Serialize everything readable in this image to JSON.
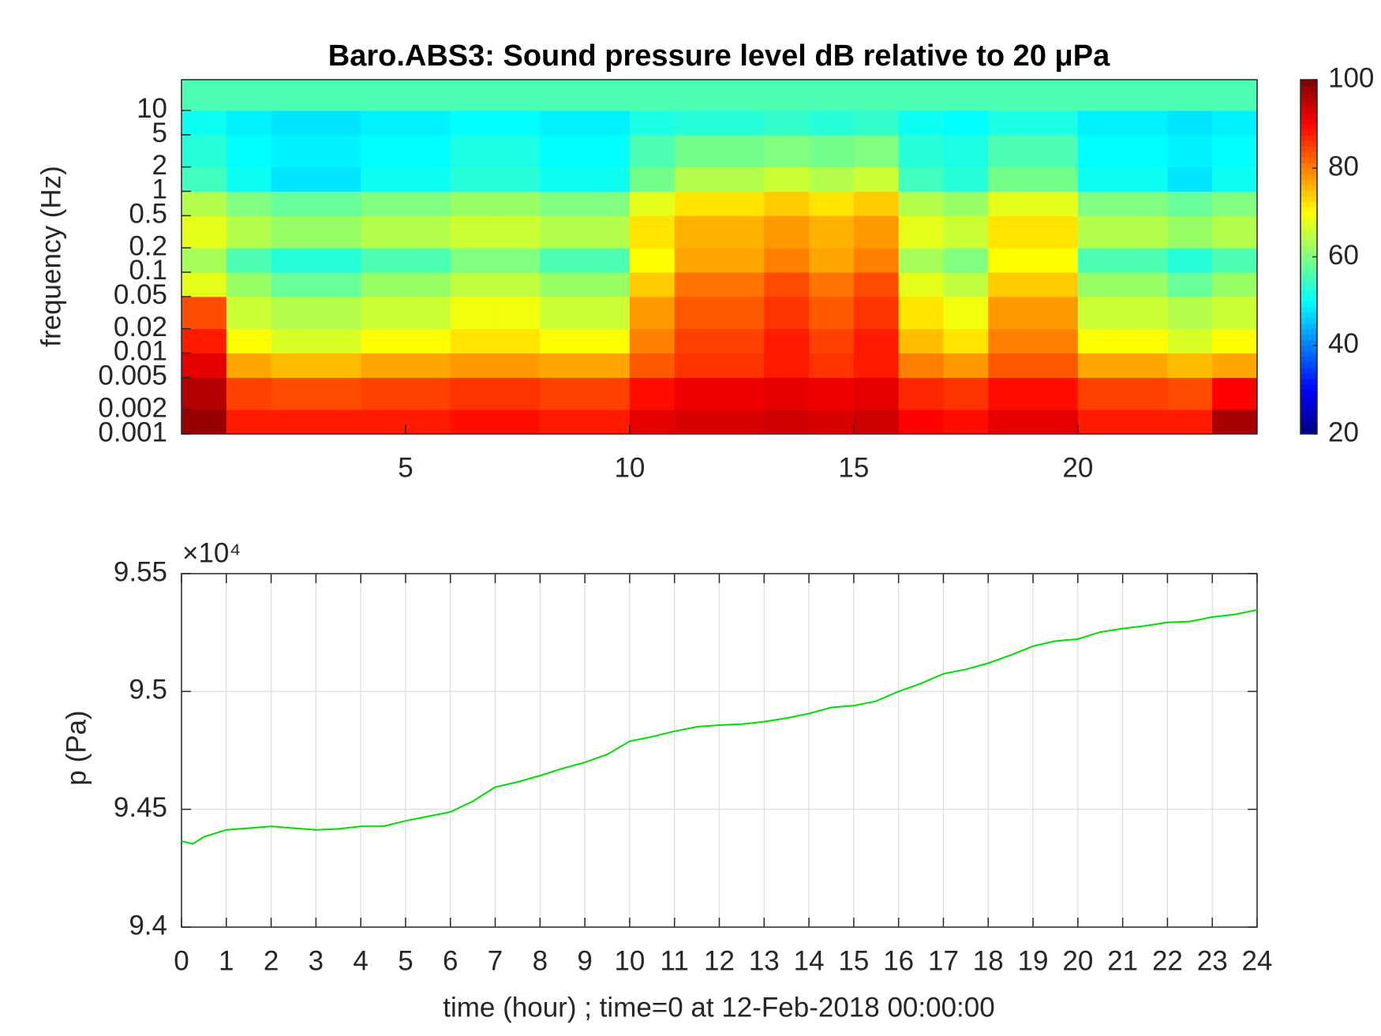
{
  "chart_data": [
    {
      "type": "heatmap",
      "title": "Baro.ABS3: Sound pressure level dB relative to 20 μPa",
      "ylabel": "frequency (Hz)",
      "xlim": [
        0,
        24
      ],
      "xticks": [
        5,
        10,
        15,
        20
      ],
      "ylim": [
        0.001,
        24
      ],
      "ylog": true,
      "yticks": [
        0.001,
        0.002,
        0.005,
        0.01,
        0.02,
        0.05,
        0.1,
        0.2,
        0.5,
        1,
        2,
        5,
        10
      ],
      "colormap": "jet",
      "clim": [
        20,
        100
      ],
      "cticks": [
        20,
        40,
        60,
        80,
        100
      ],
      "x_edges": [
        0,
        1,
        2,
        3,
        4,
        5,
        6,
        7,
        8,
        9,
        10,
        11,
        12,
        13,
        14,
        15,
        16,
        17,
        18,
        19,
        20,
        21,
        22,
        23,
        24
      ],
      "y_edges": [
        0.001,
        0.002,
        0.005,
        0.01,
        0.02,
        0.05,
        0.1,
        0.2,
        0.5,
        1,
        2,
        5,
        10,
        24
      ],
      "z": [
        [
          98,
          88,
          88,
          88,
          88,
          88,
          89,
          89,
          88,
          88,
          92,
          93,
          93,
          94,
          93,
          94,
          90,
          89,
          92,
          92,
          88,
          88,
          88,
          97
        ],
        [
          96,
          85,
          84,
          84,
          85,
          85,
          86,
          86,
          85,
          85,
          89,
          91,
          91,
          92,
          91,
          92,
          87,
          86,
          89,
          89,
          85,
          85,
          84,
          90
        ],
        [
          92,
          77,
          75,
          75,
          77,
          77,
          78,
          78,
          77,
          77,
          83,
          86,
          86,
          88,
          86,
          88,
          80,
          78,
          83,
          83,
          77,
          77,
          75,
          77
        ],
        [
          88,
          70,
          67,
          67,
          70,
          70,
          72,
          72,
          70,
          70,
          80,
          85,
          85,
          88,
          85,
          88,
          75,
          72,
          80,
          80,
          70,
          70,
          67,
          70
        ],
        [
          84,
          66,
          64,
          64,
          66,
          66,
          69,
          69,
          66,
          66,
          78,
          83,
          83,
          86,
          83,
          86,
          72,
          69,
          78,
          78,
          66,
          66,
          64,
          66
        ],
        [
          68,
          62,
          58,
          58,
          62,
          62,
          65,
          65,
          62,
          62,
          74,
          81,
          81,
          84,
          81,
          84,
          68,
          65,
          74,
          74,
          62,
          62,
          58,
          62
        ],
        [
          63,
          56,
          53,
          53,
          56,
          56,
          60,
          60,
          56,
          56,
          70,
          77,
          77,
          80,
          77,
          80,
          63,
          60,
          70,
          70,
          56,
          56,
          53,
          56
        ],
        [
          68,
          64,
          62,
          62,
          64,
          64,
          66,
          66,
          64,
          64,
          72,
          76,
          76,
          78,
          76,
          78,
          68,
          66,
          72,
          72,
          64,
          64,
          62,
          64
        ],
        [
          64,
          60,
          58,
          58,
          60,
          60,
          62,
          62,
          60,
          60,
          68,
          72,
          72,
          74,
          72,
          74,
          64,
          62,
          68,
          68,
          60,
          60,
          58,
          60
        ],
        [
          55,
          51,
          48,
          48,
          51,
          51,
          53,
          53,
          51,
          51,
          59,
          64,
          64,
          66,
          64,
          66,
          55,
          53,
          59,
          59,
          51,
          51,
          48,
          51
        ],
        [
          53,
          50,
          49,
          49,
          50,
          50,
          52,
          52,
          50,
          50,
          56,
          59,
          59,
          60,
          59,
          60,
          53,
          52,
          56,
          56,
          50,
          50,
          49,
          50
        ],
        [
          51,
          49,
          48,
          48,
          49,
          49,
          50,
          50,
          49,
          49,
          52,
          53,
          53,
          54,
          53,
          54,
          51,
          50,
          52,
          52,
          49,
          49,
          48,
          49
        ],
        [
          56,
          56,
          56,
          56,
          56,
          56,
          56,
          56,
          56,
          56,
          56,
          56,
          56,
          56,
          56,
          56,
          56,
          56,
          56,
          56,
          56,
          56,
          56,
          56
        ]
      ]
    },
    {
      "type": "line",
      "xlabel": "time (hour) ; time=0 at 12-Feb-2018 00:00:00",
      "ylabel": "p (Pa)",
      "y_exponent": "×10⁴",
      "xlim": [
        0,
        24
      ],
      "xticks": [
        0,
        1,
        2,
        3,
        4,
        5,
        6,
        7,
        8,
        9,
        10,
        11,
        12,
        13,
        14,
        15,
        16,
        17,
        18,
        19,
        20,
        21,
        22,
        23,
        24
      ],
      "ylim": [
        94000,
        95500
      ],
      "yticks": [
        {
          "value": 94000,
          "label": "9.4"
        },
        {
          "value": 94500,
          "label": "9.45"
        },
        {
          "value": 95000,
          "label": "9.5"
        },
        {
          "value": 95500,
          "label": "9.55"
        }
      ],
      "grid": true,
      "color": "#00dd00",
      "x": [
        0,
        0.25,
        0.5,
        1,
        1.5,
        2,
        2.5,
        3,
        3.5,
        4,
        4.5,
        5,
        5.5,
        6,
        6.5,
        7,
        7.5,
        8,
        8.5,
        9,
        9.5,
        10,
        10.5,
        11,
        11.5,
        12,
        12.5,
        13,
        13.5,
        14,
        14.5,
        15,
        15.5,
        16,
        16.5,
        17,
        17.5,
        18,
        18.5,
        19,
        19.5,
        20,
        20.5,
        21,
        21.5,
        22,
        22.5,
        23,
        23.5,
        24
      ],
      "values": [
        94365,
        94353,
        94383,
        94413,
        94420,
        94428,
        94420,
        94413,
        94417,
        94428,
        94428,
        94451,
        94470,
        94489,
        94534,
        94594,
        94616,
        94643,
        94673,
        94699,
        94733,
        94789,
        94808,
        94831,
        94850,
        94857,
        94861,
        94872,
        94887,
        94906,
        94932,
        94940,
        94959,
        95000,
        95034,
        95075,
        95094,
        95120,
        95154,
        95192,
        95214,
        95222,
        95252,
        95267,
        95278,
        95293,
        95297,
        95316,
        95327,
        95346
      ]
    }
  ]
}
